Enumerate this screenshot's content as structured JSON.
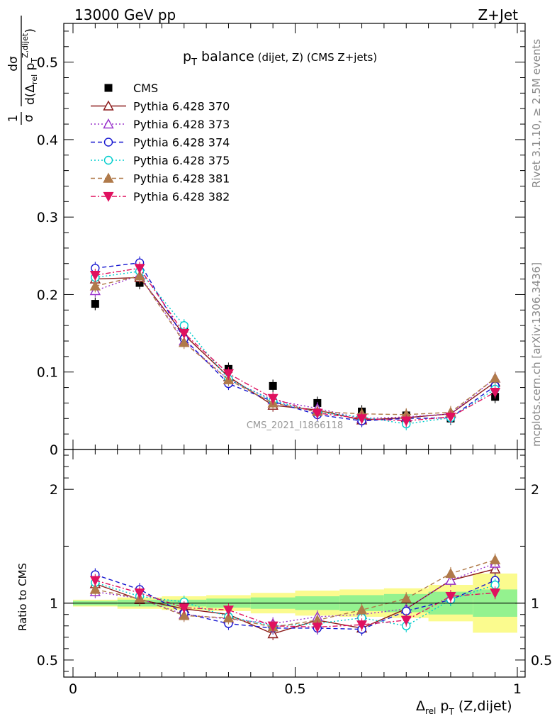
{
  "header": {
    "left": "13000 GeV pp",
    "right": "Z+Jet"
  },
  "side_labels": {
    "rivet": "Rivet 3.1.10, ≥ 2.5M events",
    "mcplots": "mcplots.cern.ch [arXiv:1306.3436]"
  },
  "title": {
    "main": "p",
    "sub": "T",
    "rest": " balance",
    "small": " (dijet, Z) (CMS Z+jets)"
  },
  "watermark": "CMS_2021_I1866118",
  "ylabel_top": {
    "frac_num": "1",
    "frac_den": "σ",
    "dnum": "dσ",
    "dden_a": "d(Δ",
    "dden_rel": "rel",
    "dden_p": " p",
    "dden_T": "T",
    "dden_sup": "Z,dijet",
    "dden_close": ")"
  },
  "ylabel_bottom": "Ratio to CMS",
  "xlabel": {
    "delta": "Δ",
    "rel": "rel",
    "p": " p",
    "T": "T",
    "rest": " (Z,dijet)"
  },
  "legend": [
    {
      "label": "CMS",
      "color": "#000000",
      "marker": "square-filled",
      "line": "none"
    },
    {
      "label": "Pythia 6.428 370",
      "color": "#8b1a1a",
      "marker": "triangle-up-open",
      "line": "solid"
    },
    {
      "label": "Pythia 6.428 373",
      "color": "#9932cc",
      "marker": "triangle-up-open",
      "line": "dotted"
    },
    {
      "label": "Pythia 6.428 374",
      "color": "#1515d0",
      "marker": "circle-open",
      "line": "dashed"
    },
    {
      "label": "Pythia 6.428 375",
      "color": "#00cdcd",
      "marker": "circle-open",
      "line": "dotted"
    },
    {
      "label": "Pythia 6.428 381",
      "color": "#b07a4a",
      "marker": "triangle-up-filled",
      "line": "dashed"
    },
    {
      "label": "Pythia 6.428 382",
      "color": "#e0115f",
      "marker": "triangle-down-filled",
      "line": "dashdot"
    }
  ],
  "chart_data": [
    {
      "type": "scatter",
      "panel": "main",
      "xlim": [
        0,
        1
      ],
      "ylim": [
        0,
        0.55
      ],
      "yticks": [
        0,
        0.1,
        0.2,
        0.3,
        0.4,
        0.5
      ],
      "ytick_labels": [
        "0",
        "0.1",
        "0.2",
        "0.3",
        "0.4",
        "0.5"
      ],
      "x": [
        0.05,
        0.15,
        0.25,
        0.35,
        0.45,
        0.55,
        0.65,
        0.75,
        0.85,
        0.95
      ],
      "series": [
        {
          "name": "CMS",
          "values": [
            0.188,
            0.215,
            0.156,
            0.104,
            0.082,
            0.06,
            0.049,
            0.044,
            0.04,
            0.068
          ]
        },
        {
          "name": "Pythia 6.428 370",
          "values": [
            0.22,
            0.222,
            0.148,
            0.094,
            0.057,
            0.051,
            0.038,
            0.041,
            0.046,
            0.087
          ]
        },
        {
          "name": "Pythia 6.428 373",
          "values": [
            0.205,
            0.225,
            0.14,
            0.09,
            0.064,
            0.053,
            0.04,
            0.042,
            0.046,
            0.092
          ]
        },
        {
          "name": "Pythia 6.428 374",
          "values": [
            0.234,
            0.241,
            0.143,
            0.085,
            0.062,
            0.045,
            0.037,
            0.04,
            0.041,
            0.082
          ]
        },
        {
          "name": "Pythia 6.428 375",
          "values": [
            0.222,
            0.23,
            0.16,
            0.091,
            0.063,
            0.048,
            0.042,
            0.033,
            0.041,
            0.078
          ]
        },
        {
          "name": "Pythia 6.428 381",
          "values": [
            0.211,
            0.224,
            0.138,
            0.09,
            0.06,
            0.049,
            0.046,
            0.045,
            0.048,
            0.092
          ]
        },
        {
          "name": "Pythia 6.428 382",
          "values": [
            0.225,
            0.234,
            0.15,
            0.098,
            0.066,
            0.047,
            0.04,
            0.037,
            0.042,
            0.074
          ]
        }
      ]
    },
    {
      "type": "scatter",
      "panel": "ratio",
      "xlim": [
        0,
        1
      ],
      "ylim": [
        0.35,
        2.35
      ],
      "yticks": [
        0.5,
        1,
        2
      ],
      "ytick_labels": [
        "0.5",
        "1",
        "2"
      ],
      "xticks": [
        0,
        0.5,
        1
      ],
      "xtick_labels": [
        "0",
        "0.5",
        "1"
      ],
      "x": [
        0.05,
        0.15,
        0.25,
        0.35,
        0.45,
        0.55,
        0.65,
        0.75,
        0.85,
        0.95
      ],
      "band_green": [
        [
          0.98,
          1.02
        ],
        [
          0.97,
          1.03
        ],
        [
          0.97,
          1.03
        ],
        [
          0.96,
          1.04
        ],
        [
          0.95,
          1.05
        ],
        [
          0.94,
          1.06
        ],
        [
          0.93,
          1.07
        ],
        [
          0.92,
          1.08
        ],
        [
          0.9,
          1.1
        ],
        [
          0.88,
          1.12
        ]
      ],
      "band_yellow": [
        [
          0.97,
          1.03
        ],
        [
          0.95,
          1.05
        ],
        [
          0.94,
          1.06
        ],
        [
          0.93,
          1.07
        ],
        [
          0.91,
          1.09
        ],
        [
          0.89,
          1.11
        ],
        [
          0.88,
          1.12
        ],
        [
          0.87,
          1.13
        ],
        [
          0.84,
          1.16
        ],
        [
          0.74,
          1.26
        ]
      ],
      "series": [
        {
          "name": "Pythia 6.428 370",
          "values": [
            1.17,
            1.03,
            0.95,
            0.9,
            0.73,
            0.85,
            0.78,
            0.95,
            1.2,
            1.3
          ]
        },
        {
          "name": "Pythia 6.428 373",
          "values": [
            1.1,
            1.04,
            0.9,
            0.86,
            0.82,
            0.88,
            0.9,
            0.95,
            1.2,
            1.35
          ]
        },
        {
          "name": "Pythia 6.428 374",
          "values": [
            1.25,
            1.12,
            0.91,
            0.82,
            0.78,
            0.78,
            0.77,
            0.93,
            1.03,
            1.2
          ]
        },
        {
          "name": "Pythia 6.428 375",
          "values": [
            1.18,
            1.06,
            1.01,
            0.88,
            0.8,
            0.82,
            0.87,
            0.8,
            1.03,
            1.16
          ]
        },
        {
          "name": "Pythia 6.428 381",
          "values": [
            1.12,
            1.04,
            0.89,
            0.87,
            0.79,
            0.85,
            0.94,
            1.04,
            1.26,
            1.38
          ]
        },
        {
          "name": "Pythia 6.428 382",
          "values": [
            1.2,
            1.09,
            0.96,
            0.94,
            0.8,
            0.79,
            0.81,
            0.85,
            1.06,
            1.09
          ]
        }
      ]
    }
  ]
}
